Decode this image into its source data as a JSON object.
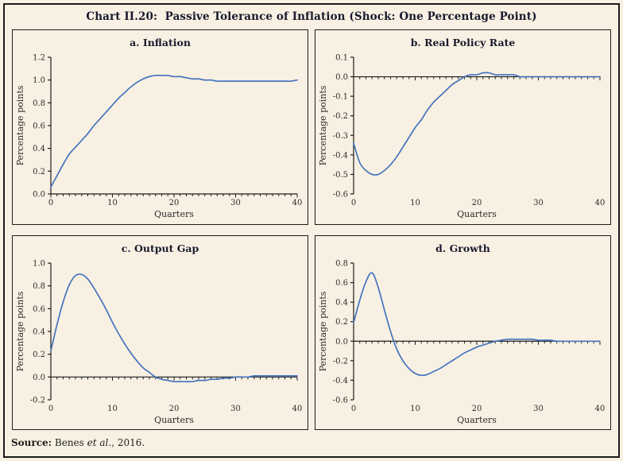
{
  "page": {
    "title": "Chart II.20:  Passive Tolerance of Inflation (Shock: One Percentage Point)",
    "source": {
      "prefix": "Source:",
      "body": " Benes ",
      "italic": "et al.",
      "suffix": ", 2016."
    },
    "colors": {
      "background": "#f8f1e3",
      "line": "#4573bd",
      "axis": "#1c1c1c",
      "title_text": "#19192e",
      "tick_text": "#2b2b2b",
      "panel_border": "#1c1c1c"
    }
  },
  "chart_data": [
    {
      "type": "line",
      "title": "a. Inflation",
      "xlabel": "Quarters",
      "ylabel": "Percentage points",
      "x_range": [
        0,
        40
      ],
      "x_major_ticks": [
        0,
        10,
        20,
        30,
        40
      ],
      "x_minor_tick_step": 1,
      "ylim": [
        0,
        1.2
      ],
      "ytick_step": 0.2,
      "x_step": 1,
      "values": [
        0.06,
        0.16,
        0.26,
        0.35,
        0.41,
        0.47,
        0.53,
        0.6,
        0.66,
        0.72,
        0.78,
        0.84,
        0.89,
        0.94,
        0.98,
        1.01,
        1.03,
        1.04,
        1.04,
        1.04,
        1.03,
        1.03,
        1.02,
        1.01,
        1.01,
        1.0,
        1.0,
        0.99,
        0.99,
        0.99,
        0.99,
        0.99,
        0.99,
        0.99,
        0.99,
        0.99,
        0.99,
        0.99,
        0.99,
        0.99,
        1.0
      ]
    },
    {
      "type": "line",
      "title": "b. Real Policy Rate",
      "xlabel": "Quarters",
      "ylabel": "Percentage points",
      "x_range": [
        0,
        40
      ],
      "x_major_ticks": [
        0,
        10,
        20,
        30,
        40
      ],
      "x_minor_tick_step": 1,
      "ylim": [
        -0.6,
        0.1
      ],
      "ytick_step": 0.1,
      "x_step": 1,
      "values": [
        -0.34,
        -0.44,
        -0.48,
        -0.5,
        -0.5,
        -0.48,
        -0.45,
        -0.41,
        -0.36,
        -0.31,
        -0.26,
        -0.22,
        -0.17,
        -0.13,
        -0.1,
        -0.07,
        -0.04,
        -0.02,
        0.0,
        0.01,
        0.01,
        0.02,
        0.02,
        0.01,
        0.01,
        0.01,
        0.01,
        0.0,
        0.0,
        0.0,
        0.0,
        0.0,
        0.0,
        0.0,
        0.0,
        0.0,
        0.0,
        0.0,
        0.0,
        0.0,
        0.0
      ]
    },
    {
      "type": "line",
      "title": "c. Output Gap",
      "xlabel": "Quarters",
      "ylabel": "Percentage points",
      "x_range": [
        0,
        40
      ],
      "x_major_ticks": [
        0,
        10,
        20,
        30,
        40
      ],
      "x_minor_tick_step": 1,
      "ylim": [
        -0.2,
        1.0
      ],
      "ytick_step": 0.2,
      "x_step": 1,
      "values": [
        0.23,
        0.46,
        0.66,
        0.81,
        0.89,
        0.9,
        0.86,
        0.78,
        0.69,
        0.59,
        0.48,
        0.38,
        0.29,
        0.21,
        0.14,
        0.08,
        0.04,
        0.0,
        -0.02,
        -0.03,
        -0.04,
        -0.04,
        -0.04,
        -0.04,
        -0.03,
        -0.03,
        -0.02,
        -0.02,
        -0.01,
        -0.01,
        0.0,
        0.0,
        0.0,
        0.01,
        0.01,
        0.01,
        0.01,
        0.01,
        0.01,
        0.01,
        0.01
      ]
    },
    {
      "type": "line",
      "title": "d. Growth",
      "xlabel": "Quarters",
      "ylabel": "Percentage points",
      "x_range": [
        0,
        40
      ],
      "x_major_ticks": [
        0,
        10,
        20,
        30,
        40
      ],
      "x_minor_tick_step": 1,
      "ylim": [
        -0.6,
        0.8
      ],
      "ytick_step": 0.2,
      "x_step": 1,
      "values": [
        0.19,
        0.42,
        0.61,
        0.7,
        0.55,
        0.32,
        0.1,
        -0.08,
        -0.2,
        -0.28,
        -0.33,
        -0.35,
        -0.34,
        -0.31,
        -0.28,
        -0.24,
        -0.2,
        -0.16,
        -0.12,
        -0.09,
        -0.06,
        -0.04,
        -0.02,
        0.0,
        0.01,
        0.02,
        0.02,
        0.02,
        0.02,
        0.02,
        0.01,
        0.01,
        0.01,
        0.0,
        0.0,
        0.0,
        0.0,
        0.0,
        0.0,
        0.0,
        0.0
      ]
    }
  ]
}
